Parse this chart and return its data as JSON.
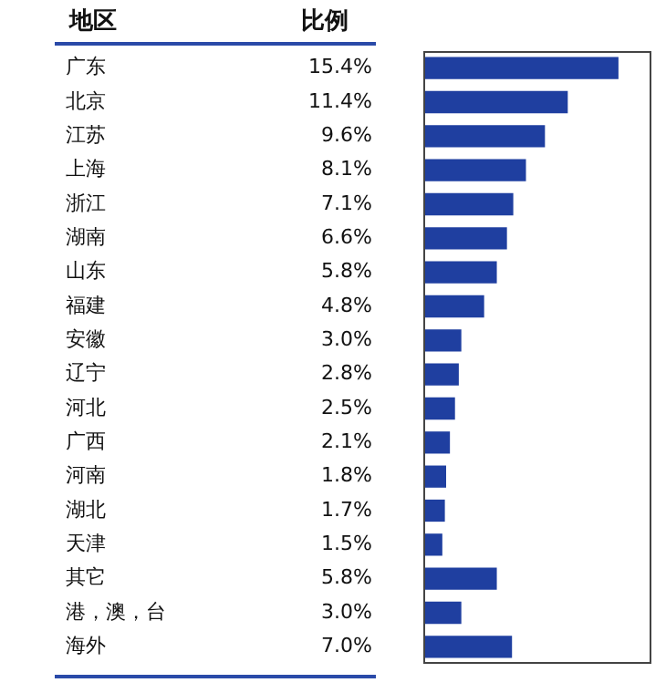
{
  "chart_data": {
    "type": "bar",
    "orientation": "horizontal",
    "annotations": [
      "地区",
      "比例"
    ],
    "categories": [
      "广东",
      "北京",
      "江苏",
      "上海",
      "浙江",
      "湖南",
      "山东",
      "福建",
      "安徽",
      "辽宁",
      "河北",
      "广西",
      "河南",
      "湖北",
      "天津",
      "其它",
      "港，澳，台",
      "海外"
    ],
    "values": [
      15.4,
      11.4,
      9.6,
      8.1,
      7.1,
      6.6,
      5.8,
      4.8,
      3.0,
      2.8,
      2.5,
      2.1,
      1.8,
      1.7,
      1.5,
      5.8,
      3.0,
      7.0
    ],
    "value_labels": [
      "15.4%",
      "11.4%",
      "9.6%",
      "8.1%",
      "7.1%",
      "6.6%",
      "5.8%",
      "4.8%",
      "3.0%",
      "2.8%",
      "2.5%",
      "2.1%",
      "1.8%",
      "1.7%",
      "1.5%",
      "5.8%",
      "3.0%",
      "7.0%"
    ],
    "color": "#1f3fa0",
    "xlim": [
      0,
      18
    ],
    "tick_labels": "y",
    "grid": false,
    "legend": false
  }
}
